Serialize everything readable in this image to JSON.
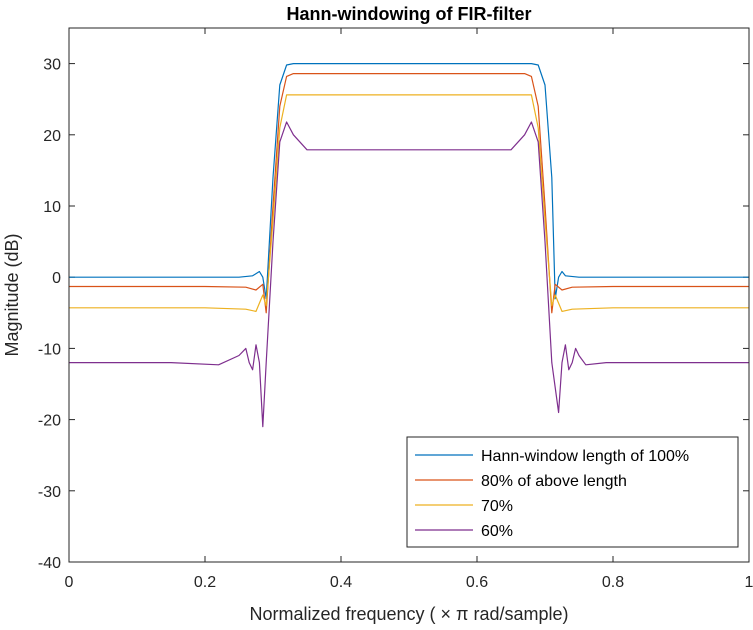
{
  "chart_data": {
    "type": "line",
    "title": "Hann-windowing of FIR-filter",
    "xlabel": "Normalized frequency ( × π rad/sample)",
    "ylabel": "Magnitude (dB)",
    "xlim": [
      0,
      1
    ],
    "ylim": [
      -40,
      35
    ],
    "xticks": [
      0,
      0.2,
      0.4,
      0.6,
      0.8,
      1
    ],
    "xticklabels": [
      "0",
      "0.2",
      "0.4",
      "0.6",
      "0.8",
      "1"
    ],
    "yticks": [
      -40,
      -30,
      -20,
      -10,
      0,
      10,
      20,
      30
    ],
    "yticklabels": [
      "-40",
      "-30",
      "-20",
      "-10",
      "0",
      "10",
      "20",
      "30"
    ],
    "grid": false,
    "legend_position": "bottom-right",
    "series": [
      {
        "name": "Hann-window length of 100%",
        "color": "#0072BD",
        "x": [
          0,
          0.2,
          0.25,
          0.27,
          0.28,
          0.285,
          0.29,
          0.3,
          0.31,
          0.32,
          0.33,
          0.5,
          0.67,
          0.68,
          0.69,
          0.7,
          0.71,
          0.715,
          0.72,
          0.725,
          0.73,
          0.75,
          0.8,
          1
        ],
        "values": [
          0,
          0,
          0,
          0.2,
          0.8,
          0,
          -3,
          14,
          27,
          29.8,
          30,
          30,
          30,
          30,
          29.8,
          27,
          14,
          -3,
          0,
          0.8,
          0.2,
          0,
          0,
          0
        ]
      },
      {
        "name": "80% of above length",
        "color": "#D95319",
        "x": [
          0,
          0.2,
          0.26,
          0.275,
          0.285,
          0.29,
          0.3,
          0.31,
          0.32,
          0.33,
          0.5,
          0.67,
          0.68,
          0.69,
          0.7,
          0.71,
          0.715,
          0.725,
          0.74,
          0.8,
          1
        ],
        "values": [
          -1.3,
          -1.3,
          -1.4,
          -1.8,
          -1.0,
          -5,
          10,
          24,
          28.2,
          28.6,
          28.6,
          28.6,
          28.2,
          24,
          10,
          -5,
          -1.0,
          -1.8,
          -1.4,
          -1.3,
          -1.3
        ],
        "x_note": "",
        "_": ""
      },
      {
        "name": "70%",
        "color": "#EDB120",
        "x": [
          0,
          0.2,
          0.26,
          0.275,
          0.285,
          0.29,
          0.3,
          0.31,
          0.32,
          0.34,
          0.5,
          0.66,
          0.68,
          0.69,
          0.7,
          0.71,
          0.715,
          0.725,
          0.74,
          0.8,
          1
        ],
        "values": [
          -4.3,
          -4.3,
          -4.5,
          -4.8,
          -2.5,
          -4,
          8,
          21,
          25.6,
          25.6,
          25.6,
          25.6,
          25.6,
          21,
          8,
          -4,
          -2.5,
          -4.8,
          -4.5,
          -4.3,
          -4.3
        ]
      },
      {
        "name": "60%",
        "color": "#7E2F8E",
        "x": [
          0,
          0.15,
          0.22,
          0.25,
          0.26,
          0.265,
          0.27,
          0.275,
          0.28,
          0.285,
          0.29,
          0.3,
          0.31,
          0.32,
          0.33,
          0.35,
          0.5,
          0.65,
          0.67,
          0.68,
          0.69,
          0.7,
          0.71,
          0.72,
          0.725,
          0.73,
          0.735,
          0.74,
          0.745,
          0.75,
          0.76,
          0.79,
          1
        ],
        "values": [
          -12,
          -12,
          -12.3,
          -11,
          -10,
          -12,
          -13,
          -9.5,
          -12,
          -21,
          -12,
          5,
          19,
          21.8,
          20,
          17.9,
          17.9,
          17.9,
          20,
          21.8,
          19,
          5,
          -12,
          -19,
          -12,
          -9.5,
          -13,
          -12,
          -10,
          -11,
          -12.3,
          -12,
          -12
        ]
      }
    ]
  }
}
